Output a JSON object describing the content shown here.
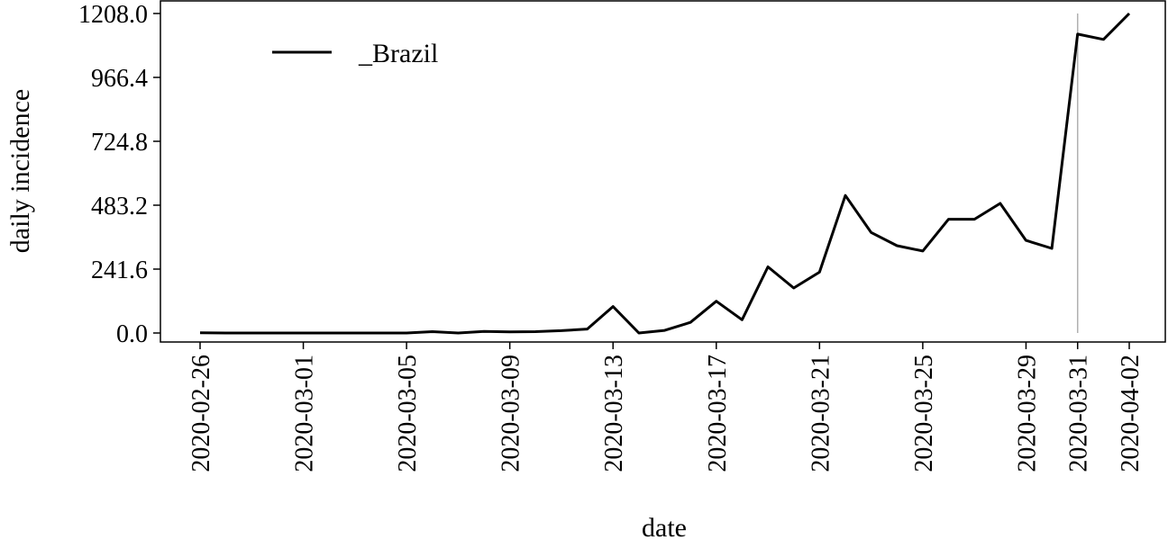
{
  "chart_data": {
    "type": "line",
    "xlabel": "date",
    "ylabel": "daily incidence",
    "ylim": [
      0.0,
      1208.0
    ],
    "y_ticks": [
      "0.0",
      "241.6",
      "483.2",
      "724.8",
      "966.4",
      "1208.0"
    ],
    "x_tick_labels": [
      "2020-02-26",
      "2020-03-01",
      "2020-03-05",
      "2020-03-09",
      "2020-03-13",
      "2020-03-17",
      "2020-03-21",
      "2020-03-25",
      "2020-03-29",
      "2020-03-31",
      "2020-04-02"
    ],
    "x_start": "2020-02-26",
    "x_end": "2020-04-02",
    "vline_date": "2020-03-31",
    "vline_color": "#b0b0b0",
    "grid": false,
    "legend_position": "top-left",
    "series": [
      {
        "name": "_Brazil",
        "color": "#000000",
        "dates": [
          "2020-02-26",
          "2020-02-27",
          "2020-02-28",
          "2020-02-29",
          "2020-03-01",
          "2020-03-02",
          "2020-03-03",
          "2020-03-04",
          "2020-03-05",
          "2020-03-06",
          "2020-03-07",
          "2020-03-08",
          "2020-03-09",
          "2020-03-10",
          "2020-03-11",
          "2020-03-12",
          "2020-03-13",
          "2020-03-14",
          "2020-03-15",
          "2020-03-16",
          "2020-03-17",
          "2020-03-18",
          "2020-03-19",
          "2020-03-20",
          "2020-03-21",
          "2020-03-22",
          "2020-03-23",
          "2020-03-24",
          "2020-03-25",
          "2020-03-26",
          "2020-03-27",
          "2020-03-28",
          "2020-03-29",
          "2020-03-30",
          "2020-03-31",
          "2020-04-01",
          "2020-04-02"
        ],
        "values": [
          1,
          0,
          0,
          0,
          0,
          0,
          0,
          0,
          0,
          5,
          0,
          6,
          4,
          5,
          9,
          15,
          100,
          0,
          10,
          40,
          120,
          50,
          250,
          170,
          230,
          520,
          380,
          330,
          310,
          430,
          430,
          490,
          350,
          320,
          1130,
          1110,
          1208
        ]
      }
    ]
  }
}
